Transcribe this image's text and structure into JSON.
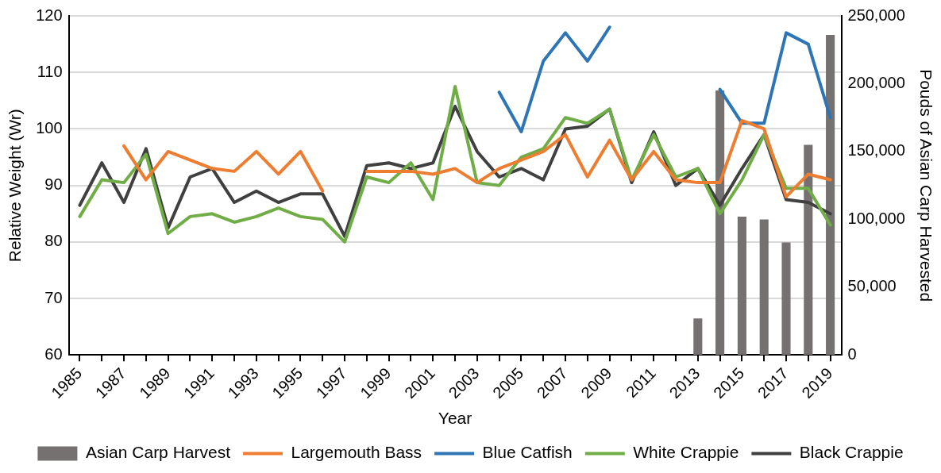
{
  "chart_data": {
    "type": "line",
    "xlabel": "Year",
    "ylabel": "Relative Weight (Wr)",
    "y2label": "Pouds of Asian Carp Harvested",
    "categories": [
      "1985",
      null,
      "1987",
      null,
      "1989",
      null,
      "1991",
      null,
      "1993",
      null,
      "1995",
      null,
      "1997",
      null,
      "1999",
      null,
      "2001",
      null,
      "2003",
      null,
      "2005",
      null,
      "2007",
      null,
      "2009",
      null,
      "2011",
      null,
      "2013",
      null,
      "2015",
      null,
      "2017",
      null,
      "2019"
    ],
    "ylim": [
      60,
      120
    ],
    "yticks": [
      60,
      70,
      80,
      90,
      100,
      110,
      120
    ],
    "y2lim": [
      0,
      250000
    ],
    "y2ticks": [
      0,
      {
        "value": 50000,
        "label": "50,000"
      },
      {
        "value": 100000,
        "label": "100,000"
      },
      {
        "value": 150000,
        "label": "150,000"
      },
      {
        "value": 200000,
        "label": "200,000"
      },
      {
        "value": 250000,
        "label": "250,000"
      }
    ],
    "grid": "y",
    "legend": "bottom",
    "marker": "none",
    "line_style": "solid",
    "series": [
      {
        "name": "Asian Carp Harvest",
        "type": "bar",
        "axis": "y2",
        "color": "#767171",
        "values": [
          null,
          null,
          null,
          null,
          null,
          null,
          null,
          null,
          null,
          null,
          null,
          null,
          null,
          null,
          null,
          null,
          null,
          null,
          null,
          null,
          null,
          null,
          null,
          null,
          null,
          null,
          null,
          null,
          27000,
          195000,
          102000,
          100000,
          83000,
          155000,
          236000
        ]
      },
      {
        "name": "Largemouth Bass",
        "color": "#ed7d31",
        "values": [
          null,
          null,
          97,
          91,
          96,
          94.5,
          93,
          92.5,
          96,
          92,
          96,
          89,
          null,
          92.5,
          92.5,
          92.5,
          92,
          93,
          90.5,
          93,
          94.5,
          96,
          99,
          91.5,
          98,
          91,
          96,
          91,
          90.5,
          90.5,
          101.5,
          100,
          88,
          92,
          91
        ]
      },
      {
        "name": "Blue Catfish",
        "color": "#2e75b6",
        "values": [
          null,
          null,
          null,
          null,
          null,
          null,
          null,
          null,
          null,
          null,
          null,
          null,
          null,
          null,
          null,
          null,
          null,
          null,
          null,
          106.5,
          99.5,
          112,
          117,
          112,
          118,
          null,
          null,
          null,
          null,
          107,
          101,
          101,
          117,
          115,
          102
        ]
      },
      {
        "name": "White Crappie",
        "color": "#70ad47",
        "values": [
          84.5,
          91,
          90.5,
          95.5,
          81.5,
          84.5,
          85,
          83.5,
          84.5,
          86,
          84.5,
          84,
          80,
          91.5,
          90.5,
          94,
          87.5,
          107.5,
          90.5,
          90,
          95,
          96.5,
          102,
          101,
          103.5,
          91,
          99,
          91.5,
          93,
          85,
          91,
          99,
          89.5,
          89.5,
          83
        ]
      },
      {
        "name": "Black Crappie",
        "color": "#404040",
        "values": [
          86.5,
          94,
          87,
          96.5,
          82.5,
          91.5,
          93,
          87,
          89,
          87,
          88.5,
          88.5,
          81,
          93.5,
          94,
          93,
          94,
          104,
          96,
          91.5,
          93,
          91,
          100,
          100.5,
          103.5,
          90.5,
          99.5,
          90,
          93,
          86.5,
          93,
          99,
          87.5,
          87,
          85
        ]
      }
    ]
  }
}
